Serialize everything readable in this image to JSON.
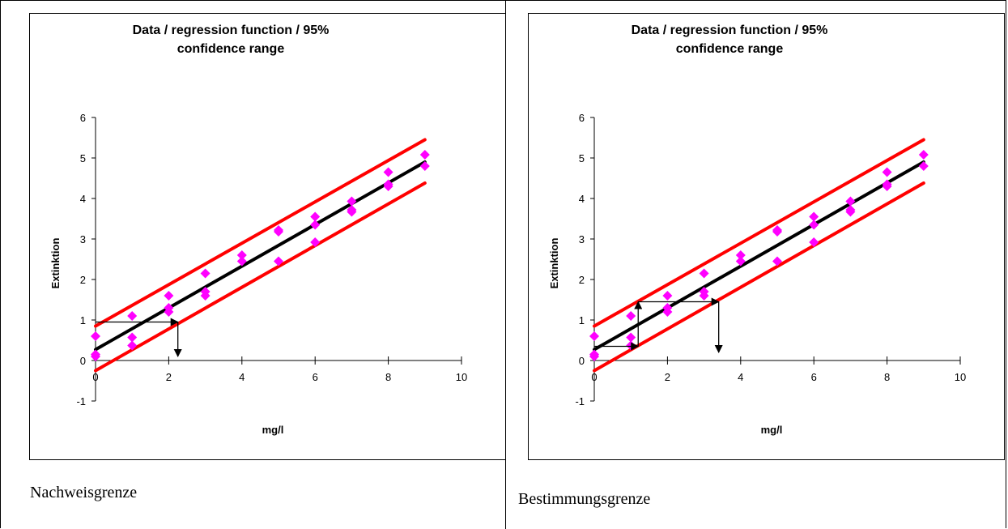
{
  "panels": [
    {
      "caption": "Nachweisgrenze",
      "chart": {
        "type": "scatter",
        "title_lines": [
          "Data / regression function / 95%",
          "confidence range"
        ],
        "xlabel": "mg/l",
        "ylabel": "Extinktion",
        "xlim": [
          0,
          10
        ],
        "ylim": [
          -1,
          6
        ],
        "xticks": [
          0,
          2,
          4,
          6,
          8,
          10
        ],
        "yticks": [
          -1,
          0,
          1,
          2,
          3,
          4,
          5,
          6
        ],
        "series": [
          {
            "kind": "points",
            "color": "#ff00ff",
            "points": [
              [
                0,
                0.6
              ],
              [
                0,
                0.15
              ],
              [
                0,
                0.1
              ],
              [
                1,
                1.1
              ],
              [
                1,
                0.57
              ],
              [
                1,
                0.37
              ],
              [
                2,
                1.6
              ],
              [
                2,
                1.3
              ],
              [
                2,
                1.2
              ],
              [
                3,
                2.15
              ],
              [
                3,
                1.7
              ],
              [
                3,
                1.6
              ],
              [
                4,
                2.6
              ],
              [
                4,
                2.45
              ],
              [
                5,
                3.22
              ],
              [
                5,
                3.18
              ],
              [
                5,
                2.45
              ],
              [
                6,
                3.55
              ],
              [
                6,
                3.35
              ],
              [
                6,
                2.92
              ],
              [
                7,
                3.93
              ],
              [
                7,
                3.72
              ],
              [
                7,
                3.67
              ],
              [
                8,
                4.65
              ],
              [
                8,
                4.35
              ],
              [
                8,
                4.3
              ],
              [
                9,
                5.08
              ],
              [
                9,
                4.8
              ]
            ]
          },
          {
            "kind": "line",
            "color": "#000000",
            "points": [
              [
                0,
                0.27
              ],
              [
                9,
                4.9
              ]
            ]
          },
          {
            "kind": "line",
            "color": "#ff0000",
            "points": [
              [
                0,
                0.85
              ],
              [
                9,
                5.45
              ]
            ]
          },
          {
            "kind": "line",
            "color": "#ff0000",
            "points": [
              [
                0,
                -0.25
              ],
              [
                9,
                4.38
              ]
            ]
          }
        ],
        "arrows": [
          {
            "from": [
              0,
              0.95
            ],
            "to": [
              2.25,
              0.95
            ]
          },
          {
            "from": [
              2.25,
              0.95
            ],
            "to": [
              2.25,
              0.1
            ]
          }
        ]
      }
    },
    {
      "caption": "Bestimmungsgrenze",
      "chart": {
        "type": "scatter",
        "title_lines": [
          "Data / regression function / 95%",
          "confidence range"
        ],
        "xlabel": "mg/l",
        "ylabel": "Extinktion",
        "xlim": [
          0,
          10
        ],
        "ylim": [
          -1,
          6
        ],
        "xticks": [
          0,
          2,
          4,
          6,
          8,
          10
        ],
        "yticks": [
          -1,
          0,
          1,
          2,
          3,
          4,
          5,
          6
        ],
        "series": [
          {
            "kind": "points",
            "color": "#ff00ff",
            "points": [
              [
                0,
                0.6
              ],
              [
                0,
                0.15
              ],
              [
                0,
                0.1
              ],
              [
                1,
                1.1
              ],
              [
                1,
                0.57
              ],
              [
                1,
                0.37
              ],
              [
                2,
                1.6
              ],
              [
                2,
                1.3
              ],
              [
                2,
                1.2
              ],
              [
                3,
                2.15
              ],
              [
                3,
                1.7
              ],
              [
                3,
                1.6
              ],
              [
                4,
                2.6
              ],
              [
                4,
                2.45
              ],
              [
                5,
                3.22
              ],
              [
                5,
                3.18
              ],
              [
                5,
                2.45
              ],
              [
                6,
                3.55
              ],
              [
                6,
                3.35
              ],
              [
                6,
                2.92
              ],
              [
                7,
                3.93
              ],
              [
                7,
                3.72
              ],
              [
                7,
                3.67
              ],
              [
                8,
                4.65
              ],
              [
                8,
                4.35
              ],
              [
                8,
                4.3
              ],
              [
                9,
                5.08
              ],
              [
                9,
                4.8
              ]
            ]
          },
          {
            "kind": "line",
            "color": "#000000",
            "points": [
              [
                0,
                0.27
              ],
              [
                9,
                4.9
              ]
            ]
          },
          {
            "kind": "line",
            "color": "#ff0000",
            "points": [
              [
                0,
                0.85
              ],
              [
                9,
                5.45
              ]
            ]
          },
          {
            "kind": "line",
            "color": "#ff0000",
            "points": [
              [
                0,
                -0.25
              ],
              [
                9,
                4.38
              ]
            ]
          }
        ],
        "arrows": [
          {
            "from": [
              0,
              0.35
            ],
            "to": [
              1.2,
              0.35
            ]
          },
          {
            "from": [
              1.2,
              0.35
            ],
            "to": [
              1.2,
              1.45
            ]
          },
          {
            "from": [
              1.2,
              1.45
            ],
            "to": [
              3.4,
              1.45
            ]
          },
          {
            "from": [
              3.4,
              1.45
            ],
            "to": [
              3.4,
              0.2
            ]
          }
        ]
      }
    }
  ]
}
